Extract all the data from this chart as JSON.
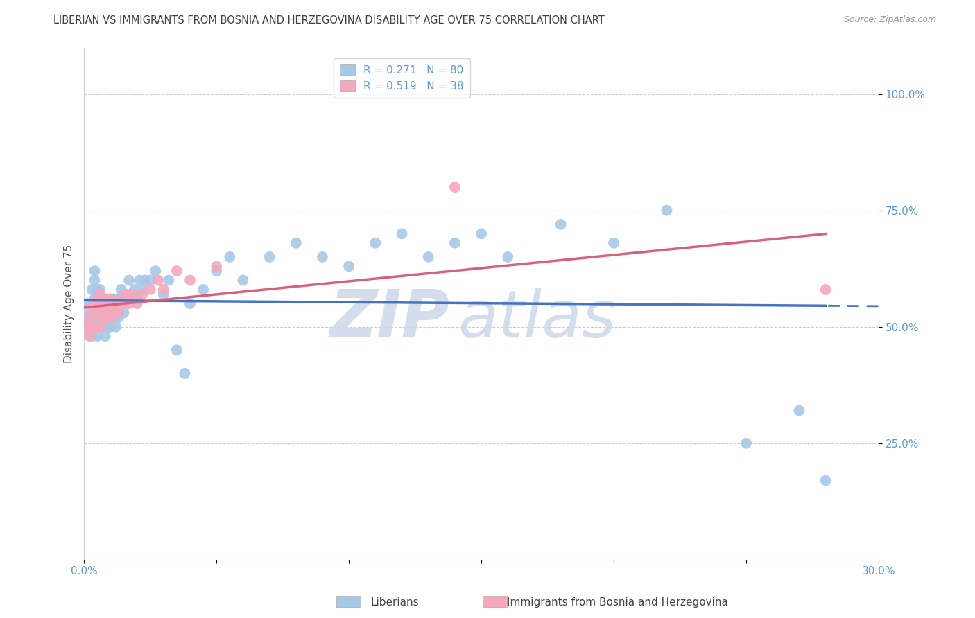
{
  "title": "LIBERIAN VS IMMIGRANTS FROM BOSNIA AND HERZEGOVINA DISABILITY AGE OVER 75 CORRELATION CHART",
  "source": "Source: ZipAtlas.com",
  "ylabel": "Disability Age Over 75",
  "xlim": [
    0.0,
    0.3
  ],
  "ylim": [
    0.0,
    1.1
  ],
  "yticks": [
    0.25,
    0.5,
    0.75,
    1.0
  ],
  "ytick_labels": [
    "25.0%",
    "50.0%",
    "75.0%",
    "100.0%"
  ],
  "xticks": [
    0.0,
    0.05,
    0.1,
    0.15,
    0.2,
    0.25,
    0.3
  ],
  "xtick_labels": [
    "0.0%",
    "",
    "",
    "",
    "",
    "",
    "30.0%"
  ],
  "legend1_R": "0.271",
  "legend1_N": "80",
  "legend2_R": "0.519",
  "legend2_N": "38",
  "blue_color": "#a8c8e8",
  "pink_color": "#f4a8bc",
  "blue_line_color": "#4472c4",
  "pink_line_color": "#d9607a",
  "axis_color": "#5b9bd5",
  "title_color": "#404040",
  "watermark_color": "#ccd8e8",
  "background_color": "#ffffff",
  "blue_x": [
    0.001,
    0.001,
    0.001,
    0.002,
    0.002,
    0.002,
    0.003,
    0.003,
    0.003,
    0.003,
    0.004,
    0.004,
    0.004,
    0.004,
    0.004,
    0.005,
    0.005,
    0.005,
    0.005,
    0.005,
    0.005,
    0.006,
    0.006,
    0.006,
    0.006,
    0.007,
    0.007,
    0.007,
    0.008,
    0.008,
    0.008,
    0.009,
    0.009,
    0.01,
    0.01,
    0.01,
    0.011,
    0.011,
    0.012,
    0.012,
    0.013,
    0.013,
    0.014,
    0.015,
    0.015,
    0.016,
    0.017,
    0.018,
    0.019,
    0.02,
    0.021,
    0.022,
    0.023,
    0.025,
    0.027,
    0.03,
    0.032,
    0.035,
    0.038,
    0.04,
    0.045,
    0.05,
    0.055,
    0.06,
    0.07,
    0.08,
    0.09,
    0.1,
    0.11,
    0.12,
    0.13,
    0.14,
    0.15,
    0.16,
    0.18,
    0.2,
    0.22,
    0.25,
    0.27,
    0.28
  ],
  "blue_y": [
    0.5,
    0.52,
    0.55,
    0.49,
    0.51,
    0.54,
    0.48,
    0.52,
    0.55,
    0.58,
    0.5,
    0.52,
    0.56,
    0.6,
    0.62,
    0.48,
    0.5,
    0.52,
    0.54,
    0.56,
    0.58,
    0.5,
    0.52,
    0.55,
    0.58,
    0.5,
    0.52,
    0.55,
    0.48,
    0.52,
    0.55,
    0.5,
    0.54,
    0.5,
    0.52,
    0.55,
    0.52,
    0.56,
    0.5,
    0.53,
    0.52,
    0.56,
    0.58,
    0.53,
    0.57,
    0.56,
    0.6,
    0.56,
    0.58,
    0.56,
    0.6,
    0.58,
    0.6,
    0.6,
    0.62,
    0.57,
    0.6,
    0.45,
    0.4,
    0.55,
    0.58,
    0.62,
    0.65,
    0.6,
    0.65,
    0.68,
    0.65,
    0.63,
    0.68,
    0.7,
    0.65,
    0.68,
    0.7,
    0.65,
    0.72,
    0.68,
    0.75,
    0.25,
    0.32,
    0.17
  ],
  "pink_x": [
    0.001,
    0.002,
    0.002,
    0.003,
    0.003,
    0.004,
    0.004,
    0.005,
    0.005,
    0.005,
    0.006,
    0.006,
    0.006,
    0.007,
    0.007,
    0.008,
    0.008,
    0.009,
    0.01,
    0.01,
    0.011,
    0.012,
    0.013,
    0.014,
    0.015,
    0.016,
    0.017,
    0.018,
    0.02,
    0.022,
    0.025,
    0.028,
    0.03,
    0.035,
    0.04,
    0.05,
    0.28,
    0.14
  ],
  "pink_y": [
    0.5,
    0.48,
    0.52,
    0.5,
    0.54,
    0.5,
    0.55,
    0.5,
    0.53,
    0.56,
    0.5,
    0.54,
    0.57,
    0.52,
    0.55,
    0.52,
    0.56,
    0.53,
    0.52,
    0.56,
    0.54,
    0.55,
    0.53,
    0.56,
    0.55,
    0.57,
    0.55,
    0.57,
    0.55,
    0.57,
    0.58,
    0.6,
    0.58,
    0.62,
    0.6,
    0.63,
    0.58,
    0.8
  ]
}
